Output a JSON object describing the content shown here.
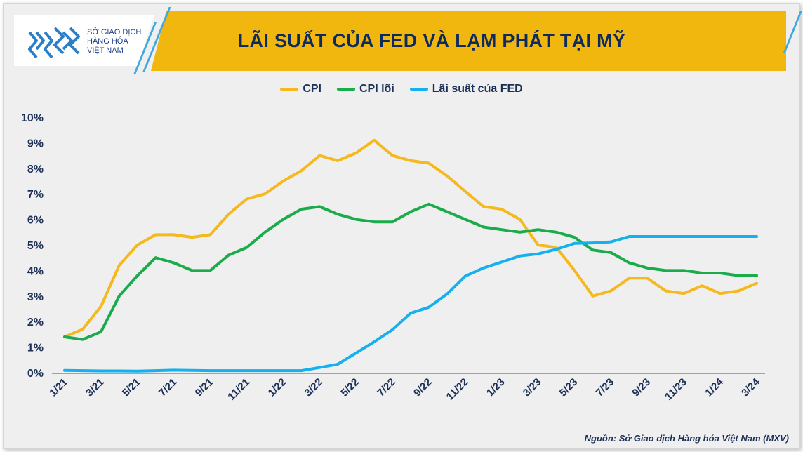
{
  "header": {
    "logo_lines": [
      "SỞ GIAO DỊCH",
      "HÀNG HÓA",
      "VIỆT NAM"
    ],
    "title": "LÃI SUẤT CỦA FED VÀ LẠM PHÁT TẠI MỸ"
  },
  "source_note": "Nguồn: Sở Giao dịch Hàng hóa Việt Nam (MXV)",
  "colors": {
    "cpi": "#f5b81d",
    "core_cpi": "#1aab4b",
    "fed_rate": "#14b1ee",
    "header_band": "#f1b70f",
    "title_text": "#0d2b5e"
  },
  "chart_data": {
    "type": "line",
    "ylim": [
      0,
      10
    ],
    "yticks": [
      "0%",
      "1%",
      "2%",
      "3%",
      "4%",
      "5%",
      "6%",
      "7%",
      "8%",
      "9%",
      "10%"
    ],
    "grid": false,
    "legend_position": "top-center",
    "x": [
      "1/21",
      "2/21",
      "3/21",
      "4/21",
      "5/21",
      "6/21",
      "7/21",
      "8/21",
      "9/21",
      "10/21",
      "11/21",
      "12/21",
      "1/22",
      "2/22",
      "3/22",
      "4/22",
      "5/22",
      "6/22",
      "7/22",
      "8/22",
      "9/22",
      "10/22",
      "11/22",
      "12/22",
      "1/23",
      "2/23",
      "3/23",
      "4/23",
      "5/23",
      "6/23",
      "7/23",
      "8/23",
      "9/23",
      "10/23",
      "11/23",
      "12/23",
      "1/24",
      "2/24",
      "3/24"
    ],
    "x_tick_labels": [
      "1/21",
      "3/21",
      "5/21",
      "7/21",
      "9/21",
      "11/21",
      "1/22",
      "3/22",
      "5/22",
      "7/22",
      "9/22",
      "11/22",
      "1/23",
      "3/23",
      "5/23",
      "7/23",
      "9/23",
      "11/23",
      "1/24",
      "3/24"
    ],
    "series": [
      {
        "name": "CPI",
        "color": "#f5b81d",
        "values": [
          1.4,
          1.7,
          2.6,
          4.2,
          5.0,
          5.4,
          5.4,
          5.3,
          5.4,
          6.2,
          6.8,
          7.0,
          7.5,
          7.9,
          8.5,
          8.3,
          8.6,
          9.1,
          8.5,
          8.3,
          8.2,
          7.7,
          7.1,
          6.5,
          6.4,
          6.0,
          5.0,
          4.9,
          4.0,
          3.0,
          3.2,
          3.7,
          3.7,
          3.2,
          3.1,
          3.4,
          3.1,
          3.2,
          3.5
        ]
      },
      {
        "name": "CPI lõi",
        "color": "#1aab4b",
        "values": [
          1.4,
          1.3,
          1.6,
          3.0,
          3.8,
          4.5,
          4.3,
          4.0,
          4.0,
          4.6,
          4.9,
          5.5,
          6.0,
          6.4,
          6.5,
          6.2,
          6.0,
          5.9,
          5.9,
          6.3,
          6.6,
          6.3,
          6.0,
          5.7,
          5.6,
          5.5,
          5.6,
          5.5,
          5.3,
          4.8,
          4.7,
          4.3,
          4.1,
          4.0,
          4.0,
          3.9,
          3.9,
          3.8,
          3.8
        ]
      },
      {
        "name": "Lãi suất của FED",
        "color": "#14b1ee",
        "values": [
          0.09,
          0.08,
          0.07,
          0.07,
          0.06,
          0.08,
          0.1,
          0.09,
          0.08,
          0.08,
          0.08,
          0.08,
          0.08,
          0.08,
          0.2,
          0.33,
          0.77,
          1.21,
          1.68,
          2.33,
          2.56,
          3.08,
          3.78,
          4.1,
          4.33,
          4.57,
          4.65,
          4.83,
          5.06,
          5.08,
          5.12,
          5.33,
          5.33,
          5.33,
          5.33,
          5.33,
          5.33,
          5.33,
          5.33
        ]
      }
    ]
  }
}
